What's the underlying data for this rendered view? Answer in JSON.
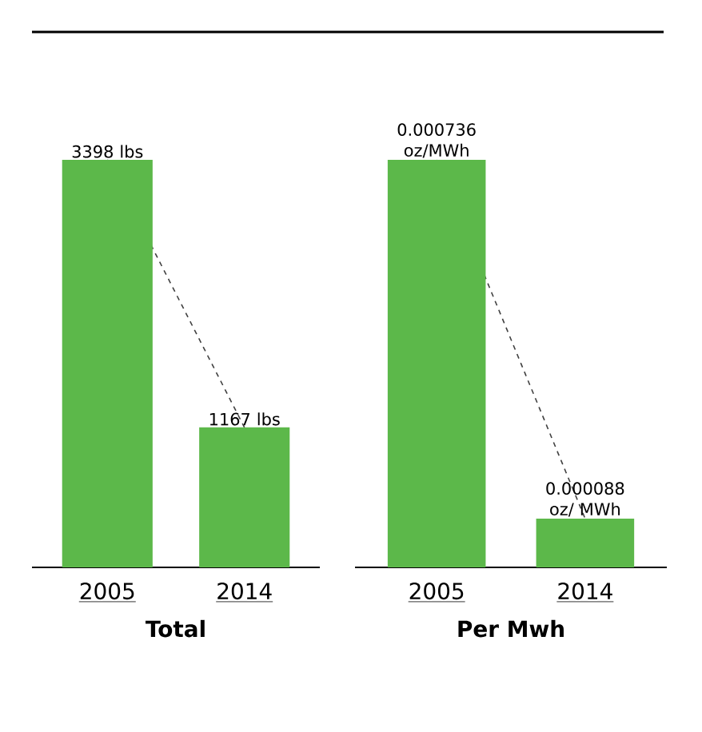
{
  "chart_data": [
    {
      "type": "bar",
      "xlabel": "Total",
      "categories": [
        "2005",
        "2014"
      ],
      "series": [
        {
          "color": "#5cb84a",
          "values": [
            3398,
            1167
          ],
          "value_labels": [
            "3398 lbs",
            "1167 lbs"
          ]
        },
        {
          "type": "line",
          "color": "#404040",
          "line_style": "dashed",
          "values": [
            3398,
            1167
          ]
        }
      ]
    },
    {
      "type": "bar",
      "xlabel": "Per Mwh",
      "categories": [
        "2005",
        "2014"
      ],
      "series": [
        {
          "color": "#5cb84a",
          "values": [
            0.000736,
            8.8e-05
          ],
          "value_labels": [
            "0.000736 oz/MWh",
            "0.000088 oz/ MWh"
          ]
        },
        {
          "type": "line",
          "color": "#404040",
          "line_style": "dashed",
          "values": [
            0.000736,
            8.8e-05
          ]
        }
      ]
    }
  ]
}
